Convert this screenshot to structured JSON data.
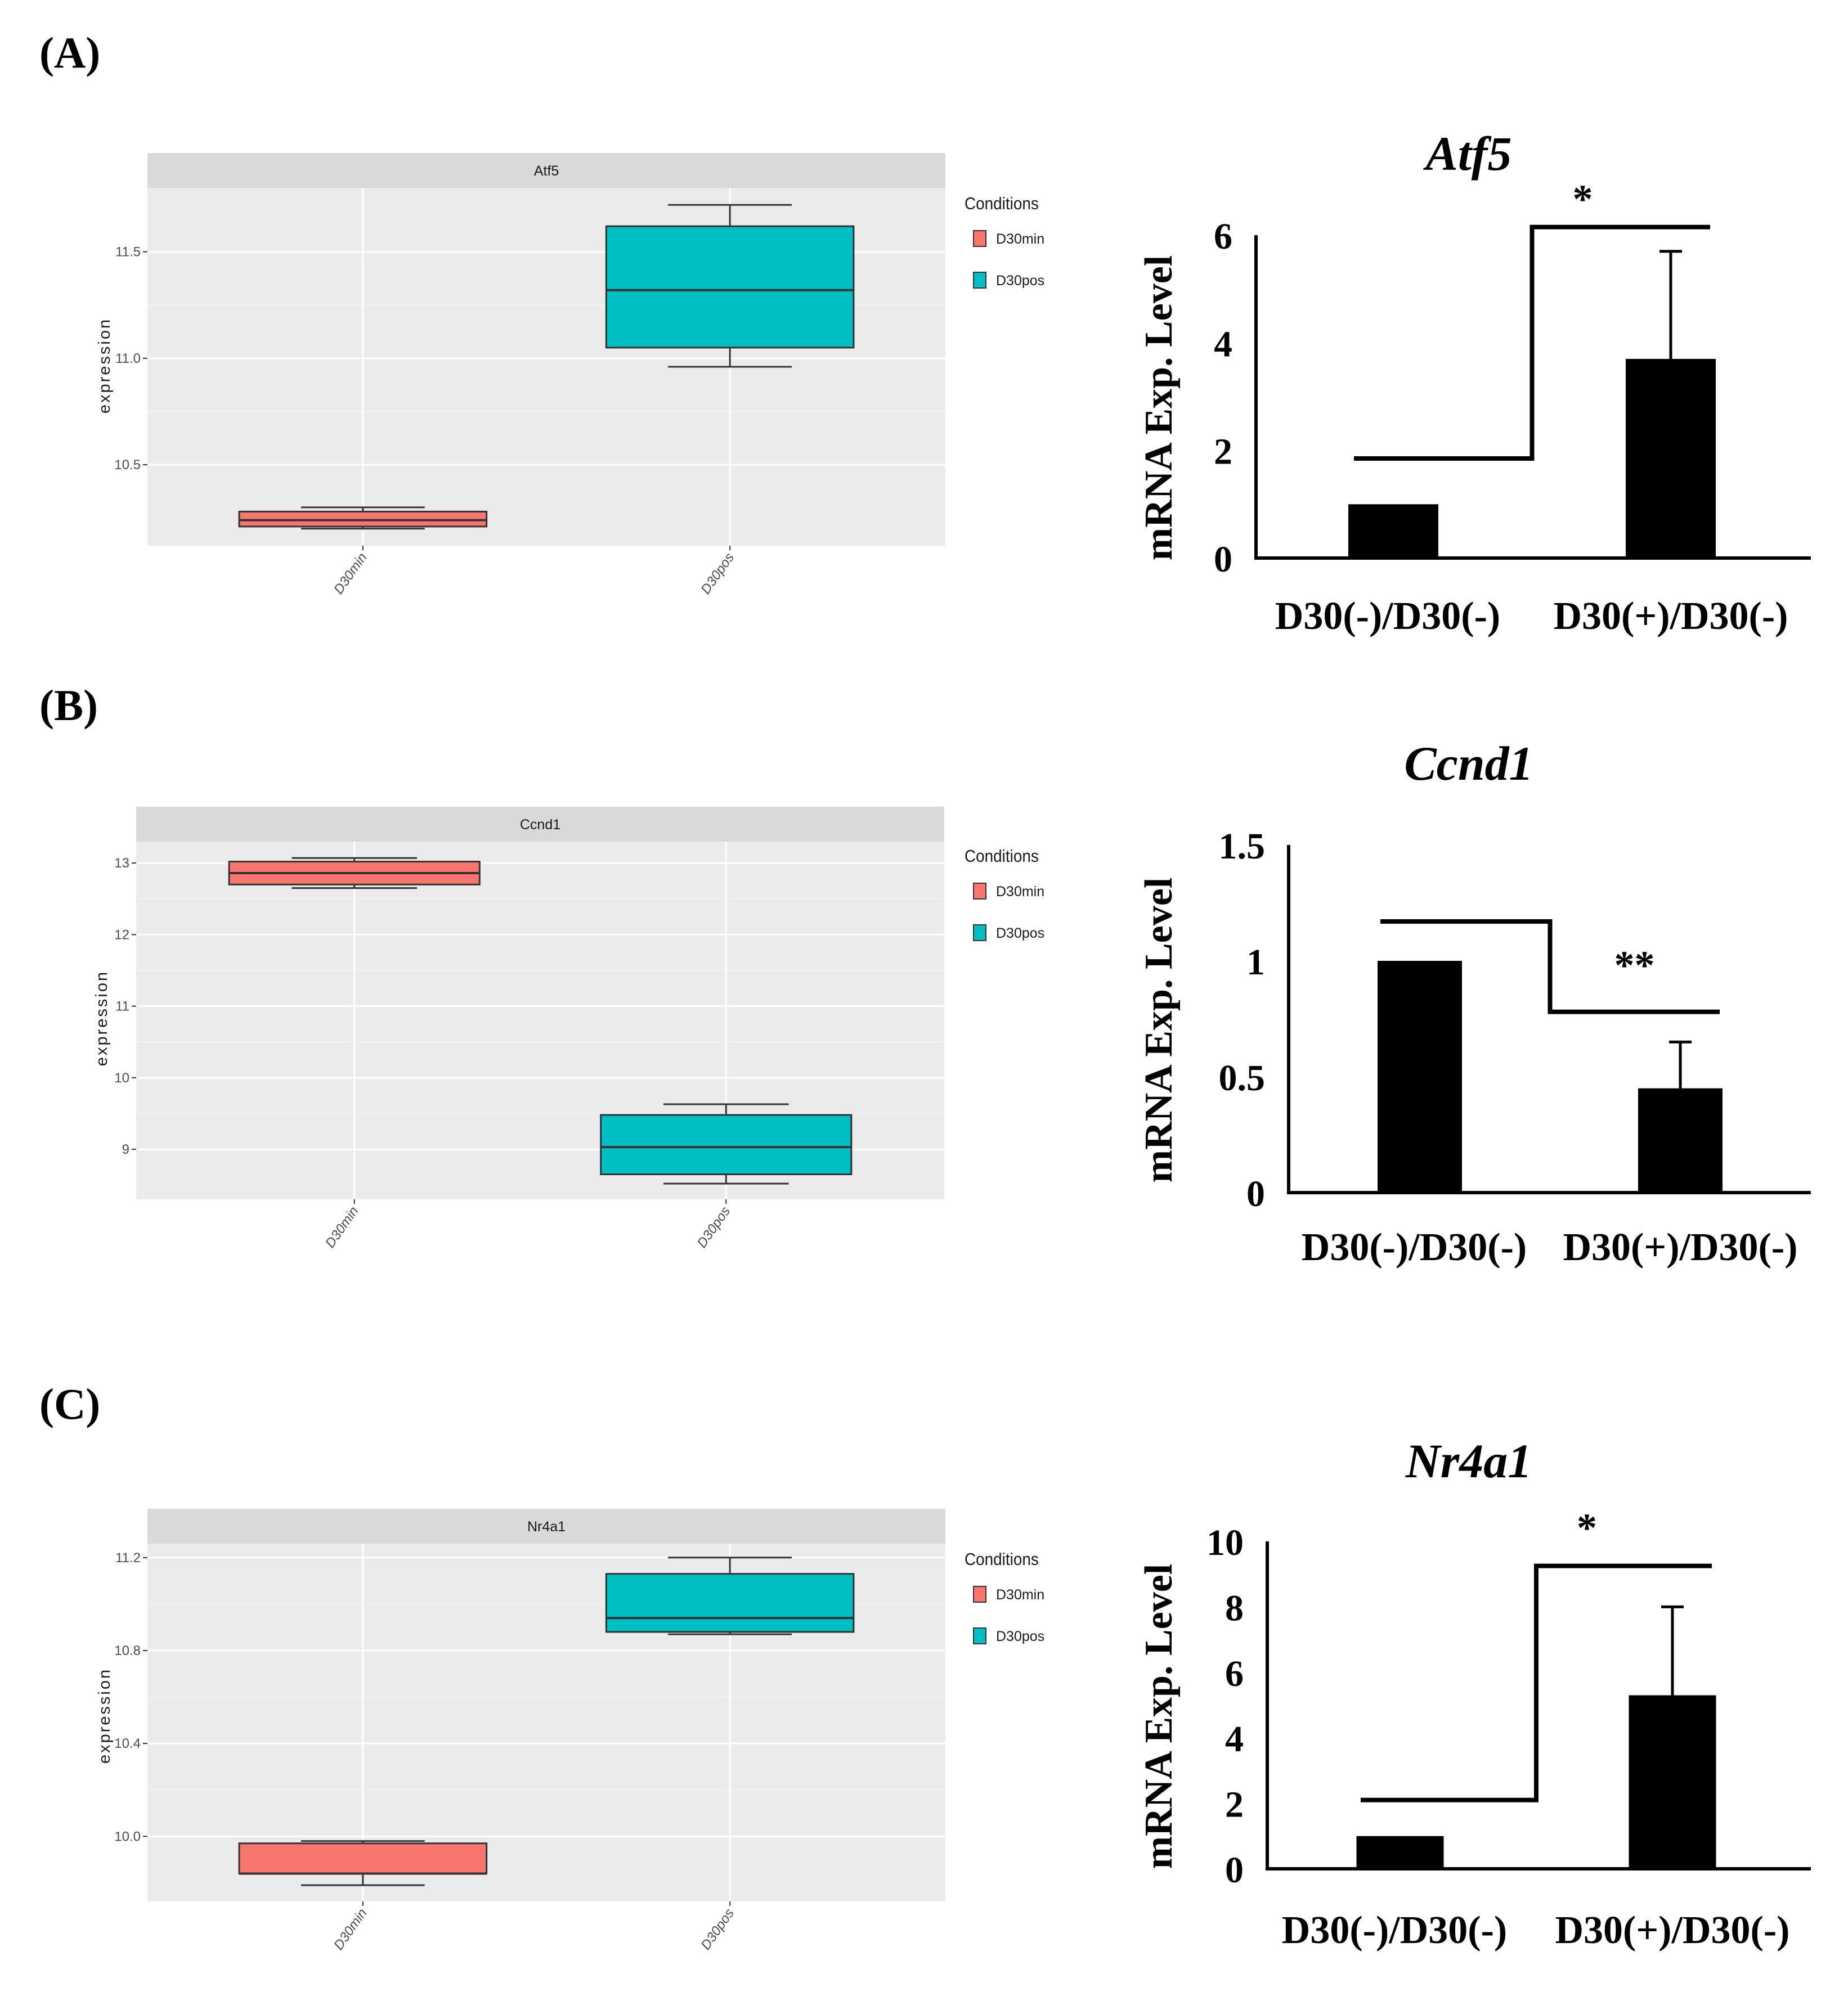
{
  "panels": [
    {
      "letter": "(A)",
      "box_plot": {
        "type": "box",
        "strip_title": "Atf5",
        "ylabel": "expression",
        "yticks": [
          10.5,
          11.0,
          11.5
        ],
        "ytick_labels": [
          "10.5",
          "11.0",
          "11.5"
        ],
        "ylim": [
          10.12,
          11.8
        ],
        "categories": [
          "D30min",
          "D30pos"
        ],
        "boxes": [
          {
            "category": "D30min",
            "min": 10.2,
            "q1": 10.21,
            "median": 10.24,
            "q3": 10.28,
            "max": 10.3,
            "color": "#F8766D"
          },
          {
            "category": "D30pos",
            "min": 10.96,
            "q1": 11.05,
            "median": 11.32,
            "q3": 11.62,
            "max": 11.72,
            "color": "#00BFC4"
          }
        ],
        "legend": {
          "title": "Conditions",
          "items": [
            {
              "label": "D30min",
              "color": "#F8766D"
            },
            {
              "label": "D30pos",
              "color": "#00BFC4"
            }
          ]
        }
      },
      "bar_chart": {
        "type": "bar",
        "title": "Atf5",
        "ylabel": "mRNA Exp. Level",
        "yticks": [
          0,
          2,
          4,
          6
        ],
        "ytick_labels": [
          "0",
          "2",
          "4",
          "6"
        ],
        "ylim": [
          0,
          6
        ],
        "categories": [
          "D30(-)/D30(-)",
          "D30(+)/D30(-)"
        ],
        "values": [
          1.0,
          3.7
        ],
        "errors": [
          0.0,
          2.0
        ],
        "bracket_left": 1.85,
        "bracket_right": 6.15,
        "significance": "*"
      }
    },
    {
      "letter": "(B)",
      "box_plot": {
        "type": "box",
        "strip_title": "Ccnd1",
        "ylabel": "expression",
        "yticks": [
          9,
          10,
          11,
          12,
          13
        ],
        "ytick_labels": [
          "9",
          "10",
          "11",
          "12",
          "13"
        ],
        "ylim": [
          8.3,
          13.3
        ],
        "categories": [
          "D30min",
          "D30pos"
        ],
        "boxes": [
          {
            "category": "D30min",
            "min": 12.65,
            "q1": 12.7,
            "median": 12.86,
            "q3": 13.02,
            "max": 13.07,
            "color": "#F8766D"
          },
          {
            "category": "D30pos",
            "min": 8.52,
            "q1": 8.65,
            "median": 9.03,
            "q3": 9.48,
            "max": 9.63,
            "color": "#00BFC4"
          }
        ],
        "legend": {
          "title": "Conditions",
          "items": [
            {
              "label": "D30min",
              "color": "#F8766D"
            },
            {
              "label": "D30pos",
              "color": "#00BFC4"
            }
          ]
        }
      },
      "bar_chart": {
        "type": "bar",
        "title": "Ccnd1",
        "ylabel": "mRNA Exp. Level",
        "yticks": [
          0,
          0.5,
          1,
          1.5
        ],
        "ytick_labels": [
          "0",
          "0.5",
          "1",
          "1.5"
        ],
        "ylim": [
          0,
          1.5
        ],
        "categories": [
          "D30(-)/D30(-)",
          "D30(+)/D30(-)"
        ],
        "values": [
          1.0,
          0.45
        ],
        "errors": [
          0.0,
          0.2
        ],
        "bracket_left": 1.17,
        "bracket_right": 0.78,
        "significance": "**"
      }
    },
    {
      "letter": "(C)",
      "box_plot": {
        "type": "box",
        "strip_title": "Nr4a1",
        "ylabel": "expression",
        "yticks": [
          10.0,
          10.4,
          10.8,
          11.2
        ],
        "ytick_labels": [
          "10.0",
          "10.4",
          "10.8",
          "11.2"
        ],
        "ylim": [
          9.72,
          11.26
        ],
        "categories": [
          "D30min",
          "D30pos"
        ],
        "boxes": [
          {
            "category": "D30min",
            "min": 9.79,
            "q1": 9.84,
            "median": 9.84,
            "q3": 9.97,
            "max": 9.98,
            "color": "#F8766D"
          },
          {
            "category": "D30pos",
            "min": 10.87,
            "q1": 10.88,
            "median": 10.94,
            "q3": 11.13,
            "max": 11.2,
            "color": "#00BFC4"
          }
        ],
        "legend": {
          "title": "Conditions",
          "items": [
            {
              "label": "D30min",
              "color": "#F8766D"
            },
            {
              "label": "D30pos",
              "color": "#00BFC4"
            }
          ]
        }
      },
      "bar_chart": {
        "type": "bar",
        "title": "Nr4a1",
        "ylabel": "mRNA Exp. Level",
        "yticks": [
          0,
          2,
          4,
          6,
          8,
          10
        ],
        "ytick_labels": [
          "0",
          "2",
          "4",
          "6",
          "8",
          "10"
        ],
        "ylim": [
          0,
          10
        ],
        "categories": [
          "D30(-)/D30(-)",
          "D30(+)/D30(-)"
        ],
        "values": [
          1.0,
          5.3
        ],
        "errors": [
          0.0,
          2.7
        ],
        "bracket_left": 2.1,
        "bracket_right": 9.25,
        "significance": "*"
      }
    }
  ],
  "chart_data": [
    {
      "type": "box",
      "title": "Atf5",
      "ylabel": "expression",
      "categories": [
        "D30min",
        "D30pos"
      ],
      "series": [
        {
          "name": "D30min",
          "min": 10.2,
          "q1": 10.21,
          "median": 10.24,
          "q3": 10.28,
          "max": 10.3
        },
        {
          "name": "D30pos",
          "min": 10.96,
          "q1": 11.05,
          "median": 11.32,
          "q3": 11.62,
          "max": 11.72
        }
      ],
      "ylim": [
        10.12,
        11.8
      ],
      "legend": "right",
      "grid": true
    },
    {
      "type": "bar",
      "title": "Atf5",
      "ylabel": "mRNA Exp. Level",
      "categories": [
        "D30(-)/D30(-)",
        "D30(+)/D30(-)"
      ],
      "values": [
        1.0,
        3.7
      ],
      "errors": [
        0.0,
        2.0
      ],
      "ylim": [
        0,
        6
      ],
      "annotation": "*"
    },
    {
      "type": "box",
      "title": "Ccnd1",
      "ylabel": "expression",
      "categories": [
        "D30min",
        "D30pos"
      ],
      "series": [
        {
          "name": "D30min",
          "min": 12.65,
          "q1": 12.7,
          "median": 12.86,
          "q3": 13.02,
          "max": 13.07
        },
        {
          "name": "D30pos",
          "min": 8.52,
          "q1": 8.65,
          "median": 9.03,
          "q3": 9.48,
          "max": 9.63
        }
      ],
      "ylim": [
        8.3,
        13.3
      ],
      "legend": "right",
      "grid": true
    },
    {
      "type": "bar",
      "title": "Ccnd1",
      "ylabel": "mRNA Exp. Level",
      "categories": [
        "D30(-)/D30(-)",
        "D30(+)/D30(-)"
      ],
      "values": [
        1.0,
        0.45
      ],
      "errors": [
        0.0,
        0.2
      ],
      "ylim": [
        0,
        1.5
      ],
      "annotation": "**"
    },
    {
      "type": "box",
      "title": "Nr4a1",
      "ylabel": "expression",
      "categories": [
        "D30min",
        "D30pos"
      ],
      "series": [
        {
          "name": "D30min",
          "min": 9.79,
          "q1": 9.84,
          "median": 9.84,
          "q3": 9.97,
          "max": 9.98
        },
        {
          "name": "D30pos",
          "min": 10.87,
          "q1": 10.88,
          "median": 10.94,
          "q3": 11.13,
          "max": 11.2
        }
      ],
      "ylim": [
        9.72,
        11.26
      ],
      "legend": "right",
      "grid": true
    },
    {
      "type": "bar",
      "title": "Nr4a1",
      "ylabel": "mRNA Exp. Level",
      "categories": [
        "D30(-)/D30(-)",
        "D30(+)/D30(-)"
      ],
      "values": [
        1.0,
        5.3
      ],
      "errors": [
        0.0,
        2.7
      ],
      "ylim": [
        0,
        10
      ],
      "annotation": "*"
    }
  ]
}
